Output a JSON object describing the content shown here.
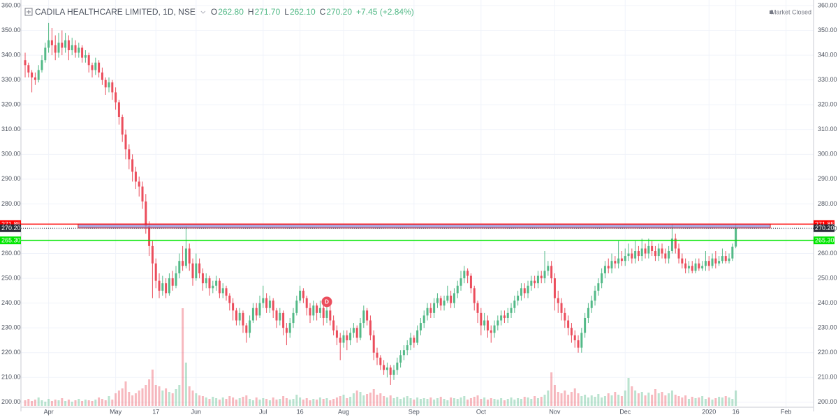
{
  "chart_data": {
    "type": "candlestick",
    "title": "CADILA HEALTHCARE LIMITED, 1D, NSE",
    "ohlc": [
      {
        "key": "O",
        "value": "262.80"
      },
      {
        "key": "H",
        "value": "271.70"
      },
      {
        "key": "L",
        "value": "262.10"
      },
      {
        "key": "C",
        "value": "270.20"
      }
    ],
    "change": "+7.45 (+2.84%)",
    "status": "Market Closed",
    "up_color": "#53b987",
    "down_color": "#eb4d5c",
    "grid": true,
    "xlim": [
      -1.25,
      235.2
    ],
    "ylim": [
      196.3,
      362.25
    ],
    "volume_lim": [
      0,
      160
    ],
    "xticks": [
      {
        "value": 7,
        "label": "Apr"
      },
      {
        "value": 27,
        "label": "May"
      },
      {
        "value": 39,
        "label": "17"
      },
      {
        "value": 51,
        "label": "Jun"
      },
      {
        "value": 71,
        "label": "Jul"
      },
      {
        "value": 82,
        "label": "16"
      },
      {
        "value": 95,
        "label": "Aug"
      },
      {
        "value": 116,
        "label": "Sep"
      },
      {
        "value": 136,
        "label": "Oct"
      },
      {
        "value": 158,
        "label": "Nov"
      },
      {
        "value": 179,
        "label": "Dec"
      },
      {
        "value": 204,
        "label": "2020"
      },
      {
        "value": 212,
        "label": "16"
      },
      {
        "value": 227,
        "label": "Feb"
      }
    ],
    "yticks": [
      {
        "value": 200,
        "label": "200.00"
      },
      {
        "value": 210,
        "label": "210.00"
      },
      {
        "value": 220,
        "label": "220.00"
      },
      {
        "value": 230,
        "label": "230.00"
      },
      {
        "value": 240,
        "label": "240.00"
      },
      {
        "value": 250,
        "label": "250.00"
      },
      {
        "value": 260,
        "label": "260.00"
      },
      {
        "value": 270,
        "label": "270.00"
      },
      {
        "value": 280,
        "label": "280.00"
      },
      {
        "value": 290,
        "label": "290.00"
      },
      {
        "value": 300,
        "label": "300.00"
      },
      {
        "value": 310,
        "label": "310.00"
      },
      {
        "value": 320,
        "label": "320.00"
      },
      {
        "value": 330,
        "label": "330.00"
      },
      {
        "value": 340,
        "label": "340.00"
      },
      {
        "value": 350,
        "label": "350.00"
      },
      {
        "value": 360,
        "label": "360.00"
      }
    ],
    "hlines": [
      {
        "value": 271.85,
        "label": "271.85",
        "color": "#ff0000"
      },
      {
        "value": 265.3,
        "label": "265.30",
        "color": "#00e600"
      }
    ],
    "last_price": {
      "value": 270.2,
      "label": "270.20",
      "color": "#2a2e39"
    },
    "zone": {
      "ylim": [
        270.3,
        271.85
      ],
      "xlim": [
        15.8,
        222.3
      ],
      "color": "#8f8fd6",
      "border": "#d32f2f"
    },
    "markers": [
      {
        "x": 90,
        "y": 240.5,
        "label": "D",
        "color": "#eb4d5c"
      }
    ],
    "categories": [
      null,
      null,
      null,
      null,
      null,
      null,
      null,
      null,
      null,
      null,
      null,
      null,
      null,
      null,
      null,
      null,
      null,
      null,
      null,
      null,
      null,
      null,
      null,
      null,
      null,
      null,
      null,
      null,
      null,
      null,
      null,
      null,
      null,
      null,
      null,
      null,
      null,
      null,
      null,
      null,
      null,
      null,
      null,
      null,
      null,
      null,
      null,
      null,
      null,
      null,
      null,
      null,
      null,
      null,
      null,
      null,
      null,
      null,
      null,
      null,
      null,
      null,
      null,
      null,
      null,
      null,
      null,
      null,
      null,
      null,
      null,
      null,
      null,
      null,
      null,
      null,
      null,
      null,
      null,
      null,
      null,
      null,
      null,
      null,
      null,
      null,
      null,
      null,
      null,
      null,
      null,
      null,
      null,
      null,
      null,
      null,
      null,
      null,
      null,
      null,
      null,
      null,
      null,
      null,
      null,
      null,
      null,
      null,
      null,
      null,
      null,
      null,
      null,
      null,
      null,
      null,
      null,
      null,
      null,
      null,
      null,
      null,
      null,
      null,
      null,
      null,
      null,
      null,
      null,
      null,
      null,
      null,
      null,
      null,
      null,
      null,
      null,
      null,
      null,
      null,
      null,
      null,
      null,
      null,
      null,
      null,
      null,
      null,
      null,
      null,
      null,
      null,
      null,
      null,
      null,
      null,
      null,
      null,
      null,
      null,
      null,
      null,
      null,
      null,
      null,
      null,
      null,
      null,
      null,
      null,
      null,
      null,
      null,
      null,
      null,
      null,
      null,
      null,
      null,
      null,
      null,
      null,
      null,
      null,
      null,
      null,
      null,
      null,
      null,
      null,
      null,
      null,
      null,
      null,
      null,
      null,
      null,
      null,
      null,
      null,
      null,
      null,
      null,
      null,
      null,
      null,
      null,
      null,
      null,
      null,
      null,
      null,
      null
    ],
    "open": [
      338,
      336,
      333,
      331,
      330,
      334,
      338,
      343,
      346,
      344,
      341,
      345,
      343,
      346,
      342,
      344,
      341,
      343,
      339,
      340,
      336,
      334,
      337,
      333,
      330,
      327,
      329,
      325,
      321,
      315,
      308,
      302,
      298,
      293,
      289,
      287,
      281,
      271,
      263,
      256,
      249,
      245,
      248,
      244,
      250,
      247,
      252,
      257,
      255,
      262,
      256,
      250,
      256,
      252,
      248,
      250,
      246,
      247,
      249,
      244,
      246,
      243,
      240,
      237,
      233,
      236,
      231,
      228,
      233,
      238,
      235,
      240,
      242,
      238,
      241,
      237,
      233,
      236,
      230,
      228,
      232,
      236,
      241,
      245,
      242,
      238,
      235,
      239,
      236,
      238,
      234,
      237,
      233,
      229,
      226,
      224,
      227,
      225,
      228,
      230,
      226,
      232,
      237,
      233,
      227,
      220,
      218,
      215,
      213,
      214,
      211,
      213,
      216,
      219,
      221,
      223,
      226,
      224,
      229,
      232,
      235,
      238,
      236,
      240,
      242,
      239,
      241,
      243,
      240,
      244,
      247,
      250,
      253,
      251,
      246,
      240,
      236,
      231,
      233,
      229,
      228,
      231,
      233,
      235,
      234,
      236,
      238,
      241,
      243,
      246,
      244,
      247,
      249,
      248,
      251,
      250,
      253,
      255,
      250,
      242,
      240,
      236,
      233,
      230,
      227,
      225,
      222,
      228,
      234,
      238,
      241,
      245,
      248,
      252,
      255,
      254,
      257,
      256,
      258,
      257,
      259,
      260,
      258,
      261,
      259,
      262,
      260,
      263,
      261,
      259,
      262,
      260,
      258,
      261,
      266,
      262,
      258,
      256,
      254,
      255,
      253,
      256,
      254,
      255,
      257,
      255,
      258,
      256,
      257,
      259,
      257,
      258,
      262.8
    ],
    "high": [
      341,
      337,
      334,
      333,
      336,
      340,
      345,
      353,
      351,
      348,
      349,
      350,
      349,
      348,
      347,
      346,
      345,
      344,
      342,
      341,
      337,
      339,
      338,
      335,
      331,
      331,
      330,
      327,
      322,
      316,
      310,
      304,
      300,
      295,
      291,
      289,
      284,
      273,
      265,
      258,
      252,
      251,
      250,
      252,
      253,
      255,
      260,
      263,
      271,
      264,
      258,
      260,
      258,
      254,
      252,
      251,
      249,
      251,
      250,
      248,
      247,
      244,
      242,
      238,
      238,
      237,
      232,
      235,
      240,
      240,
      243,
      247,
      244,
      243,
      242,
      238,
      238,
      237,
      232,
      234,
      238,
      243,
      247,
      246,
      243,
      240,
      241,
      240,
      241,
      239,
      239,
      240,
      235,
      231,
      228,
      229,
      229,
      230,
      232,
      231,
      234,
      239,
      238,
      235,
      229,
      222,
      219,
      217,
      216,
      215,
      215,
      218,
      221,
      223,
      225,
      228,
      227,
      231,
      234,
      237,
      240,
      240,
      242,
      244,
      243,
      243,
      247,
      245,
      246,
      249,
      253,
      255,
      254,
      252,
      247,
      241,
      238,
      236,
      235,
      231,
      233,
      235,
      237,
      237,
      238,
      240,
      243,
      245,
      248,
      248,
      249,
      251,
      251,
      253,
      253,
      261,
      257,
      257,
      252,
      245,
      242,
      238,
      235,
      232,
      229,
      227,
      230,
      236,
      240,
      243,
      247,
      250,
      254,
      257,
      258,
      260,
      259,
      265,
      261,
      262,
      264,
      262,
      265,
      263,
      266,
      264,
      266,
      265,
      263,
      264,
      264,
      262,
      263,
      272,
      268,
      264,
      260,
      258,
      257,
      257,
      258,
      258,
      257,
      261,
      259,
      260,
      261,
      259,
      262,
      261,
      260,
      264,
      271.7
    ],
    "low": [
      331,
      331,
      325,
      328,
      329,
      333,
      337,
      341,
      340,
      338,
      339,
      340,
      341,
      338,
      340,
      339,
      339,
      337,
      337,
      333,
      331,
      332,
      331,
      328,
      324,
      325,
      322,
      318,
      312,
      305,
      298,
      294,
      289,
      286,
      283,
      278,
      268,
      259,
      242,
      246,
      242,
      243,
      242,
      243,
      245,
      246,
      250,
      253,
      254,
      253,
      247,
      249,
      250,
      245,
      246,
      243,
      244,
      245,
      242,
      242,
      241,
      237,
      233,
      231,
      231,
      228,
      224,
      226,
      232,
      233,
      234,
      238,
      236,
      236,
      234,
      230,
      231,
      227,
      223,
      226,
      230,
      235,
      240,
      240,
      235,
      232,
      233,
      233,
      234,
      231,
      232,
      231,
      227,
      223,
      217,
      222,
      221,
      223,
      226,
      224,
      225,
      230,
      231,
      225,
      217,
      215,
      213,
      211,
      210,
      207,
      209,
      211,
      214,
      217,
      219,
      221,
      222,
      223,
      227,
      230,
      233,
      234,
      234,
      238,
      237,
      237,
      240,
      238,
      238,
      242,
      245,
      248,
      248,
      244,
      237,
      232,
      227,
      229,
      226,
      224,
      226,
      229,
      231,
      232,
      232,
      234,
      236,
      239,
      241,
      242,
      242,
      245,
      246,
      246,
      248,
      248,
      251,
      248,
      237,
      236,
      233,
      230,
      227,
      224,
      222,
      220,
      220,
      226,
      232,
      236,
      239,
      243,
      246,
      250,
      252,
      252,
      254,
      254,
      255,
      255,
      257,
      256,
      256,
      257,
      257,
      258,
      258,
      259,
      257,
      257,
      258,
      256,
      256,
      260,
      260,
      256,
      254,
      252,
      252,
      252,
      252,
      253,
      253,
      253,
      253,
      254,
      254,
      255,
      256,
      256,
      256,
      257,
      262.1
    ],
    "close": [
      336,
      333,
      331,
      330,
      334,
      338,
      343,
      346,
      344,
      341,
      345,
      343,
      346,
      342,
      344,
      341,
      343,
      339,
      340,
      336,
      334,
      337,
      333,
      330,
      327,
      329,
      325,
      321,
      315,
      308,
      302,
      298,
      293,
      289,
      287,
      281,
      271,
      263,
      256,
      249,
      245,
      248,
      244,
      250,
      247,
      252,
      257,
      255,
      262,
      256,
      250,
      256,
      252,
      248,
      250,
      246,
      247,
      249,
      244,
      246,
      243,
      240,
      237,
      233,
      236,
      231,
      228,
      233,
      238,
      235,
      240,
      242,
      238,
      241,
      237,
      233,
      236,
      230,
      228,
      232,
      236,
      241,
      245,
      242,
      238,
      235,
      239,
      236,
      238,
      234,
      237,
      233,
      229,
      226,
      224,
      227,
      225,
      228,
      230,
      226,
      232,
      237,
      233,
      227,
      220,
      218,
      215,
      213,
      214,
      211,
      213,
      216,
      219,
      221,
      223,
      226,
      224,
      229,
      232,
      235,
      238,
      236,
      240,
      242,
      239,
      241,
      243,
      240,
      244,
      247,
      250,
      253,
      251,
      246,
      240,
      236,
      231,
      233,
      229,
      228,
      231,
      233,
      235,
      234,
      236,
      238,
      241,
      243,
      246,
      244,
      247,
      249,
      248,
      251,
      250,
      253,
      255,
      250,
      242,
      240,
      236,
      233,
      230,
      227,
      225,
      222,
      228,
      234,
      238,
      241,
      245,
      248,
      252,
      255,
      254,
      257,
      256,
      258,
      257,
      259,
      260,
      258,
      261,
      259,
      262,
      260,
      263,
      261,
      259,
      262,
      260,
      258,
      261,
      266,
      262,
      258,
      256,
      254,
      255,
      253,
      256,
      254,
      255,
      257,
      255,
      258,
      256,
      257,
      259,
      257,
      258,
      262.75,
      270.2
    ],
    "volume": [
      8,
      10,
      7,
      9,
      12,
      8,
      6,
      10,
      7,
      9,
      8,
      11,
      7,
      9,
      6,
      8,
      10,
      7,
      9,
      8,
      7,
      9,
      12,
      10,
      8,
      14,
      9,
      18,
      22,
      25,
      35,
      20,
      15,
      18,
      22,
      25,
      30,
      38,
      52,
      30,
      28,
      22,
      25,
      20,
      18,
      24,
      30,
      140,
      62,
      28,
      22,
      18,
      15,
      14,
      12,
      10,
      13,
      11,
      9,
      12,
      10,
      14,
      12,
      9,
      11,
      13,
      15,
      10,
      8,
      12,
      9,
      11,
      10,
      8,
      12,
      9,
      10,
      14,
      11,
      9,
      10,
      16,
      12,
      9,
      11,
      8,
      10,
      9,
      12,
      10,
      11,
      8,
      10,
      12,
      14,
      16,
      11,
      13,
      18,
      22,
      20,
      15,
      17,
      19,
      24,
      16,
      18,
      14,
      12,
      15,
      11,
      13,
      10,
      12,
      14,
      11,
      9,
      12,
      10,
      11,
      10,
      12,
      9,
      11,
      13,
      10,
      8,
      12,
      11,
      10,
      12,
      14,
      9,
      11,
      13,
      15,
      10,
      12,
      9,
      11,
      10,
      9,
      11,
      8,
      10,
      12,
      9,
      11,
      10,
      13,
      12,
      10,
      14,
      11,
      13,
      16,
      22,
      48,
      30,
      20,
      18,
      22,
      16,
      20,
      25,
      18,
      14,
      16,
      12,
      15,
      13,
      17,
      12,
      14,
      18,
      15,
      20,
      16,
      14,
      22,
      40,
      28,
      22,
      18,
      20,
      15,
      19,
      16,
      24,
      18,
      20,
      15,
      18,
      22,
      16,
      14,
      12,
      15,
      10,
      13,
      11,
      12,
      14,
      10,
      12,
      9,
      11,
      13,
      12,
      14,
      12,
      10,
      22
    ]
  }
}
